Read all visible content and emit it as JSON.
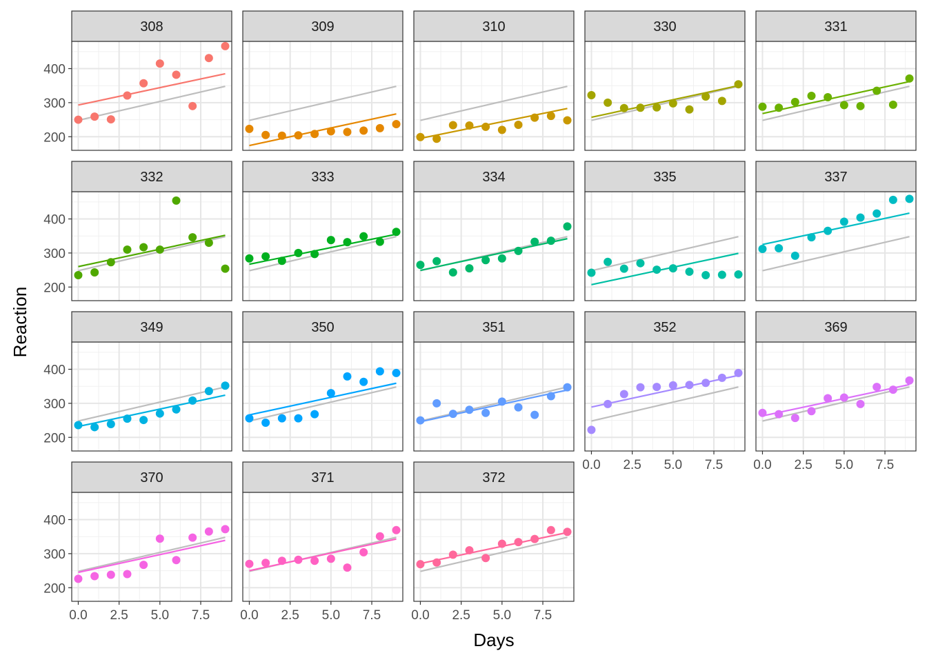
{
  "chart_data": {
    "type": "scatter",
    "layout": "facet-wrap",
    "xlabel": "Days",
    "ylabel": "Reaction",
    "xlim": [
      -0.4,
      9.4
    ],
    "ylim": [
      160,
      480
    ],
    "xticks": [
      0,
      2.5,
      5,
      7.5
    ],
    "xtick_labels": [
      "0.0",
      "2.5",
      "5.0",
      "7.5"
    ],
    "yticks": [
      200,
      300,
      400
    ],
    "ytick_labels": [
      "200",
      "300",
      "400"
    ],
    "grid": true,
    "legend": "none",
    "days": [
      0,
      1,
      2,
      3,
      4,
      5,
      6,
      7,
      8,
      9
    ],
    "overall_fit": {
      "color": "#bebebe",
      "values": [
        248,
        348
      ]
    },
    "panels": [
      {
        "subject": "308",
        "color": "#F8766D",
        "y": [
          250,
          259,
          251,
          321,
          357,
          415,
          382,
          290,
          431,
          466
        ],
        "fit": [
          293,
          385
        ]
      },
      {
        "subject": "309",
        "color": "#E58700",
        "y": [
          223,
          205,
          203,
          204,
          208,
          216,
          214,
          218,
          225,
          237
        ],
        "fit": [
          174,
          267
        ]
      },
      {
        "subject": "310",
        "color": "#C99800",
        "y": [
          199,
          194,
          234,
          233,
          229,
          220,
          235,
          256,
          261,
          248
        ],
        "fit": [
          195,
          283
        ]
      },
      {
        "subject": "330",
        "color": "#A3A500",
        "y": [
          322,
          300,
          284,
          285,
          286,
          298,
          280,
          318,
          305,
          354
        ],
        "fit": [
          257,
          350
        ]
      },
      {
        "subject": "331",
        "color": "#6BB100",
        "y": [
          288,
          285,
          302,
          320,
          316,
          293,
          290,
          335,
          294,
          371
        ],
        "fit": [
          268,
          362
        ]
      },
      {
        "subject": "332",
        "color": "#00BA38",
        "y": [
          235,
          243,
          273,
          310,
          317,
          310,
          454,
          346,
          330,
          254
        ],
        "fit": [
          260,
          352
        ],
        "color_override": "#4FA800"
      },
      {
        "subject": "333",
        "color": "#00BF7D",
        "y": [
          284,
          290,
          277,
          300,
          297,
          338,
          332,
          349,
          333,
          362
        ],
        "fit": [
          267,
          355
        ],
        "color_override": "#00B01F"
      },
      {
        "subject": "334",
        "color": "#00C0AF",
        "y": [
          265,
          276,
          243,
          255,
          279,
          284,
          306,
          333,
          336,
          378
        ],
        "fit": [
          249,
          342
        ],
        "color_override": "#00B86A"
      },
      {
        "subject": "335",
        "color": "#00BCD8",
        "y": [
          242,
          274,
          254,
          270,
          251,
          255,
          245,
          235,
          236,
          237
        ],
        "fit": [
          207,
          299
        ],
        "color_override": "#00BFA4"
      },
      {
        "subject": "337",
        "color": "#00B0F6",
        "y": [
          312,
          314,
          292,
          346,
          365,
          392,
          404,
          416,
          456,
          459
        ],
        "fit": [
          325,
          417
        ],
        "color_override": "#00BCC4"
      },
      {
        "subject": "349",
        "color": "#00A5FF",
        "y": [
          236,
          230,
          239,
          255,
          251,
          270,
          282,
          308,
          336,
          352
        ],
        "fit": [
          232,
          324
        ],
        "color_override": "#00B2E2"
      },
      {
        "subject": "350",
        "color": "#619CFF",
        "y": [
          256,
          243,
          256,
          256,
          268,
          330,
          379,
          363,
          394,
          389
        ],
        "fit": [
          266,
          359
        ],
        "color_override": "#00A5FF"
      },
      {
        "subject": "351",
        "color": "#9590FF",
        "y": [
          250,
          300,
          269,
          281,
          272,
          305,
          288,
          266,
          321,
          347
        ],
        "fit": [
          246,
          339
        ],
        "color_override": "#619CFF"
      },
      {
        "subject": "352",
        "color": "#C77CFF",
        "y": [
          222,
          298,
          327,
          347,
          348,
          353,
          354,
          360,
          375,
          389
        ],
        "fit": [
          289,
          382
        ],
        "color_override": "#A58AFF"
      },
      {
        "subject": "369",
        "color": "#E76BF3",
        "y": [
          272,
          268,
          257,
          277,
          315,
          317,
          298,
          348,
          340,
          367
        ],
        "fit": [
          263,
          355
        ],
        "color_override": "#DC71FA"
      },
      {
        "subject": "370",
        "color": "#FA62DB",
        "y": [
          226,
          234,
          238,
          240,
          267,
          344,
          281,
          347,
          365,
          372
        ],
        "fit": [
          245,
          339
        ],
        "color_override": "#F564E3"
      },
      {
        "subject": "371",
        "color": "#FF62BC",
        "y": [
          270,
          273,
          279,
          282,
          279,
          285,
          259,
          304,
          351,
          369
        ],
        "fit": [
          250,
          343
        ],
        "color_override": "#FF61C3"
      },
      {
        "subject": "372",
        "color": "#FF6C91",
        "y": [
          269,
          274,
          297,
          310,
          287,
          329,
          334,
          343,
          369,
          364
        ],
        "fit": [
          271,
          362
        ],
        "color_override": "#FF689B"
      }
    ]
  }
}
